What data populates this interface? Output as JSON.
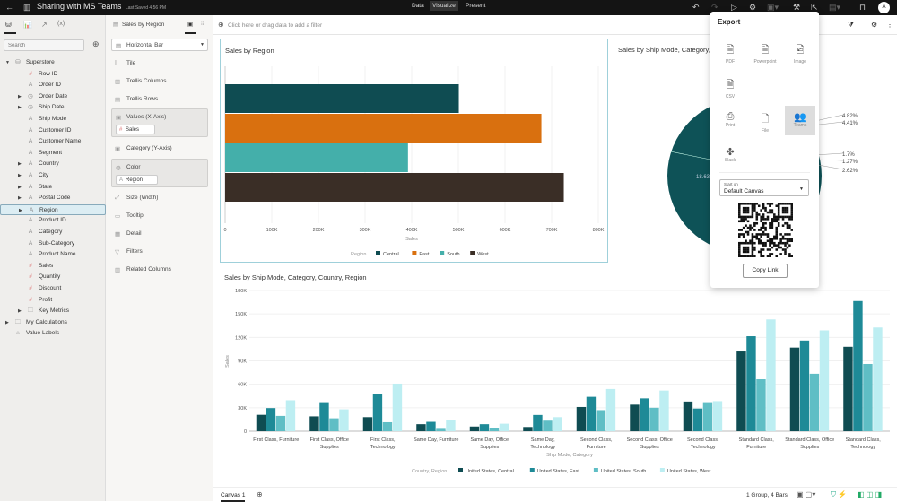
{
  "topbar": {
    "title": "Sharing with MS Teams",
    "saved": "Last Saved 4:56 PM",
    "tabs": [
      "Data",
      "Visualize",
      "Present"
    ],
    "active_tab": "Visualize",
    "avatar": "A"
  },
  "left": {
    "search_placeholder": "Search",
    "tree": [
      {
        "label": "Superstore",
        "icon": "database",
        "level": 0,
        "expand": true
      },
      {
        "label": "Row ID",
        "icon": "#",
        "level": 1
      },
      {
        "label": "Order ID",
        "icon": "A",
        "level": 1
      },
      {
        "label": "Order Date",
        "icon": "clock",
        "level": 1,
        "expand": true
      },
      {
        "label": "Ship Date",
        "icon": "clock",
        "level": 1,
        "expand": true
      },
      {
        "label": "Ship Mode",
        "icon": "A",
        "level": 1
      },
      {
        "label": "Customer ID",
        "icon": "A",
        "level": 1
      },
      {
        "label": "Customer Name",
        "icon": "A",
        "level": 1
      },
      {
        "label": "Segment",
        "icon": "A",
        "level": 1
      },
      {
        "label": "Country",
        "icon": "A",
        "level": 1,
        "expand": true
      },
      {
        "label": "City",
        "icon": "A",
        "level": 1,
        "expand": true
      },
      {
        "label": "State",
        "icon": "A",
        "level": 1,
        "expand": true
      },
      {
        "label": "Postal Code",
        "icon": "A",
        "level": 1,
        "expand": true
      },
      {
        "label": "Region",
        "icon": "A",
        "level": 1,
        "expand": true,
        "selected": true
      },
      {
        "label": "Product ID",
        "icon": "A",
        "level": 1
      },
      {
        "label": "Category",
        "icon": "A",
        "level": 1
      },
      {
        "label": "Sub-Category",
        "icon": "A",
        "level": 1
      },
      {
        "label": "Product Name",
        "icon": "A",
        "level": 1
      },
      {
        "label": "Sales",
        "icon": "#",
        "level": 1
      },
      {
        "label": "Quantity",
        "icon": "#",
        "level": 1
      },
      {
        "label": "Discount",
        "icon": "#",
        "level": 1
      },
      {
        "label": "Profit",
        "icon": "#",
        "level": 1
      },
      {
        "label": "Key Metrics",
        "icon": "folder",
        "level": 1,
        "expand": true
      },
      {
        "label": "My Calculations",
        "icon": "folder",
        "level": 0,
        "expand": true
      },
      {
        "label": "Value Labels",
        "icon": "tag",
        "level": 0
      }
    ]
  },
  "mid": {
    "viz_name": "Sales by Region",
    "viz_type": "Horizontal Bar",
    "tile": "Tile",
    "trellis_cols": "Trellis Columns",
    "trellis_rows": "Trellis Rows",
    "values": "Values (X-Axis)",
    "values_pill": "Sales",
    "category": "Category (Y-Axis)",
    "color": "Color",
    "color_pill": "Region",
    "size": "Size (Width)",
    "tooltip": "Tooltip",
    "detail": "Detail",
    "filters": "Filters",
    "related": "Related Columns"
  },
  "filter_placeholder": "Click here or drag data to add a filter",
  "export": {
    "title": "Export",
    "items": [
      "PDF",
      "Powerpoint",
      "Image",
      "CSV",
      "Print",
      "File",
      "Teams",
      "Slack"
    ],
    "start_on_label": "Start on",
    "start_on_value": "Default Canvas",
    "copy_link": "Copy Link"
  },
  "pie": {
    "title": "Sales by Ship Mode, Category,",
    "labels": [
      "4.82%",
      "4.41%",
      "1.7%",
      "1.27%",
      "2.62%",
      "18.63%"
    ]
  },
  "status": {
    "canvas_tab": "Canvas 1",
    "summary": "1 Group, 4 Bars"
  },
  "chart_data": [
    {
      "type": "bar",
      "orientation": "horizontal",
      "title": "Sales by Region",
      "xlabel": "Sales",
      "xlim": [
        0,
        800000
      ],
      "ticks": [
        "0",
        "100K",
        "200K",
        "300K",
        "400K",
        "500K",
        "600K",
        "700K",
        "800K"
      ],
      "legend_title": "Region",
      "categories": [
        "Central",
        "East",
        "South",
        "West"
      ],
      "values": [
        501000,
        678000,
        392000,
        726000
      ],
      "colors": [
        "#0f4c52",
        "#d9700f",
        "#44afaa",
        "#3a2e26"
      ],
      "legend": "bottom"
    },
    {
      "type": "bar",
      "title": "Sales by Ship Mode, Category, Country, Region",
      "xlabel": "Ship Mode, Category",
      "ylabel": "Sales",
      "ylim": [
        0,
        180000
      ],
      "ticks": [
        "0",
        "30K",
        "60K",
        "90K",
        "120K",
        "150K",
        "180K"
      ],
      "legend_title": "Country, Region",
      "legend": "bottom",
      "categories": [
        "First Class, Furniture",
        "First Class, Office Supplies",
        "First Class, Technology",
        "Same Day, Furniture",
        "Same Day, Office Supplies",
        "Same Day, Technology",
        "Second Class, Furniture",
        "Second Class, Office Supplies",
        "Second Class, Technology",
        "Standard Class, Furniture",
        "Standard Class, Office Supplies",
        "Standard Class, Technology"
      ],
      "series": [
        {
          "name": "United States, Central",
          "color": "#0f4c52",
          "values": [
            21000,
            19000,
            18000,
            9000,
            6000,
            5400,
            31000,
            34000,
            38000,
            102000,
            107000,
            108000
          ]
        },
        {
          "name": "United States, East",
          "color": "#1e8a97",
          "values": [
            29600,
            36000,
            47700,
            12000,
            9000,
            20800,
            44000,
            42000,
            29000,
            121500,
            116000,
            166500
          ]
        },
        {
          "name": "United States, South",
          "color": "#5fbec5",
          "values": [
            19600,
            16500,
            11500,
            3000,
            4000,
            13500,
            27000,
            30000,
            36000,
            66500,
            73500,
            86000
          ]
        },
        {
          "name": "United States, West",
          "color": "#bdeef2",
          "values": [
            39600,
            28000,
            60800,
            14000,
            9600,
            18000,
            54000,
            52000,
            38500,
            143000,
            129000,
            132700
          ]
        }
      ]
    }
  ]
}
